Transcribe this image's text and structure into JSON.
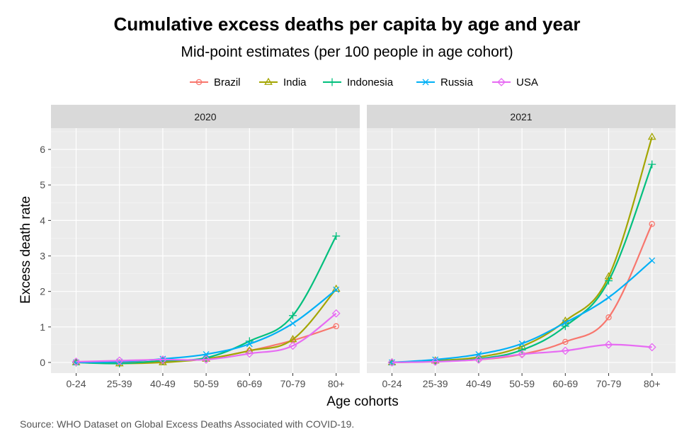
{
  "chart_data": {
    "type": "line",
    "title": "Cumulative excess deaths per capita by age and year",
    "subtitle": "Mid-point estimates (per 100 people in age cohort)",
    "xlabel": "Age cohorts",
    "ylabel": "Excess death rate",
    "caption": "Source: WHO Dataset on Global Excess Deaths Associated with COVID-19.",
    "categories": [
      "0-24",
      "25-39",
      "40-49",
      "50-59",
      "60-69",
      "70-79",
      "80+"
    ],
    "y_ticks": [
      0,
      1,
      2,
      3,
      4,
      5,
      6
    ],
    "ylim": [
      -0.3,
      6.6
    ],
    "grid": true,
    "legend_position": "top",
    "series_styles": [
      {
        "name": "Brazil",
        "color": "#F8766D",
        "marker": "circle-open"
      },
      {
        "name": "India",
        "color": "#A3A500",
        "marker": "triangle-open"
      },
      {
        "name": "Indonesia",
        "color": "#00BF7D",
        "marker": "plus"
      },
      {
        "name": "Russia",
        "color": "#00B0F6",
        "marker": "cross"
      },
      {
        "name": "USA",
        "color": "#E76BF3",
        "marker": "diamond-open"
      }
    ],
    "panels": [
      {
        "label": "2020",
        "series": [
          {
            "name": "Brazil",
            "values": [
              0.01,
              0.0,
              0.03,
              0.1,
              0.33,
              0.62,
              1.02
            ]
          },
          {
            "name": "India",
            "values": [
              0.0,
              -0.03,
              0.0,
              0.1,
              0.33,
              0.65,
              2.07
            ]
          },
          {
            "name": "Indonesia",
            "values": [
              0.0,
              -0.03,
              0.05,
              0.13,
              0.6,
              1.32,
              3.56
            ]
          },
          {
            "name": "Russia",
            "values": [
              0.0,
              0.02,
              0.1,
              0.23,
              0.52,
              1.1,
              2.05
            ]
          },
          {
            "name": "USA",
            "values": [
              0.02,
              0.05,
              0.08,
              0.08,
              0.25,
              0.47,
              1.38
            ]
          }
        ]
      },
      {
        "label": "2021",
        "series": [
          {
            "name": "Brazil",
            "values": [
              0.0,
              0.03,
              0.08,
              0.23,
              0.58,
              1.27,
              3.9
            ]
          },
          {
            "name": "India",
            "values": [
              0.0,
              0.05,
              0.15,
              0.45,
              1.17,
              2.42,
              6.35
            ]
          },
          {
            "name": "Indonesia",
            "values": [
              0.0,
              0.03,
              0.1,
              0.35,
              1.02,
              2.3,
              5.58
            ]
          },
          {
            "name": "Russia",
            "values": [
              0.0,
              0.08,
              0.23,
              0.53,
              1.12,
              1.83,
              2.87
            ]
          },
          {
            "name": "USA",
            "values": [
              0.0,
              0.02,
              0.08,
              0.23,
              0.33,
              0.5,
              0.43
            ]
          }
        ]
      }
    ]
  }
}
